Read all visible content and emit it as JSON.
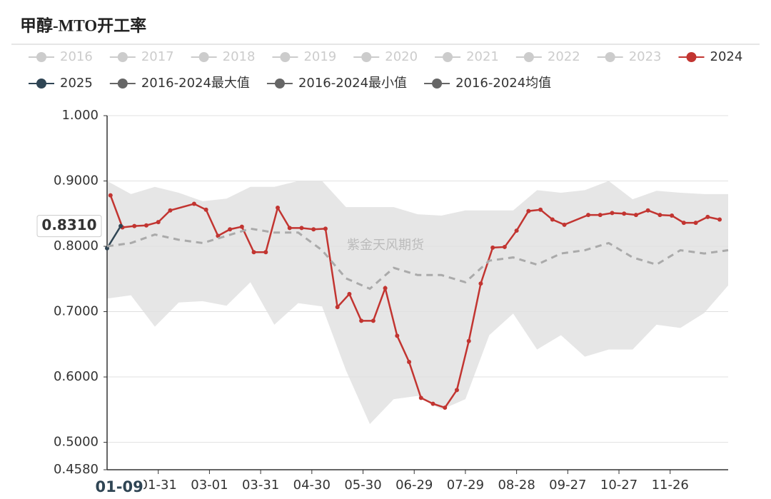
{
  "chart_data": {
    "type": "line",
    "title": "甲醇-MTO开工率",
    "watermark": "紫金天风期货",
    "legend_inactive": {
      "names": [
        "2016",
        "2017",
        "2018",
        "2019",
        "2020",
        "2021",
        "2022",
        "2023"
      ],
      "color": "#cccccc"
    },
    "xlim": [
      0,
      364
    ],
    "xticks": [
      {
        "value": 30,
        "label": "01-31"
      },
      {
        "value": 60,
        "label": "03-01"
      },
      {
        "value": 90,
        "label": "03-31"
      },
      {
        "value": 120,
        "label": "04-30"
      },
      {
        "value": 150,
        "label": "05-30"
      },
      {
        "value": 180,
        "label": "06-29"
      },
      {
        "value": 210,
        "label": "07-29"
      },
      {
        "value": 240,
        "label": "08-28"
      },
      {
        "value": 270,
        "label": "09-27"
      },
      {
        "value": 300,
        "label": "10-27"
      },
      {
        "value": 330,
        "label": "11-26"
      }
    ],
    "ylim": [
      0.458,
      1.0
    ],
    "yticks": [
      {
        "value": 0.458,
        "label": "0.4580"
      },
      {
        "value": 0.5,
        "label": "0.5000"
      },
      {
        "value": 0.6,
        "label": "0.6000"
      },
      {
        "value": 0.7,
        "label": "0.7000"
      },
      {
        "value": 0.8,
        "label": "0.8000"
      },
      {
        "value": 0.9,
        "label": "0.9000"
      },
      {
        "value": 1.0,
        "label": "1.000"
      }
    ],
    "grid": true,
    "pointer": {
      "x": 8,
      "x_label": "01-09",
      "value": 0.831,
      "label": "0.8310"
    },
    "series": [
      {
        "name": "2024",
        "color": "#c23531",
        "role": "line",
        "x": [
          2,
          9,
          16,
          23,
          30,
          37,
          51,
          58,
          65,
          72,
          79,
          86,
          93,
          100,
          107,
          114,
          121,
          128,
          135,
          142,
          149,
          156,
          163,
          170,
          177,
          184,
          191,
          198,
          205,
          212,
          219,
          226,
          233,
          240,
          247,
          254,
          261,
          268,
          282,
          289,
          296,
          303,
          310,
          317,
          324,
          331,
          338,
          345,
          352,
          359
        ],
        "values": [
          0.878,
          0.829,
          0.831,
          0.832,
          0.837,
          0.855,
          0.865,
          0.856,
          0.816,
          0.826,
          0.83,
          0.791,
          0.791,
          0.859,
          0.828,
          0.828,
          0.826,
          0.827,
          0.707,
          0.727,
          0.686,
          0.686,
          0.736,
          0.663,
          0.623,
          0.568,
          0.559,
          0.553,
          0.58,
          0.655,
          0.743,
          0.798,
          0.799,
          0.824,
          0.854,
          0.856,
          0.841,
          0.833,
          0.848,
          0.848,
          0.851,
          0.85,
          0.848,
          0.855,
          0.848,
          0.847,
          0.836,
          0.836,
          0.845,
          0.841
        ]
      },
      {
        "name": "2025",
        "color": "#2f4554",
        "role": "line",
        "x": [
          0,
          8
        ],
        "values": [
          0.797,
          0.831
        ]
      },
      {
        "name": "2016-2024最大值",
        "color": "#666666",
        "role": "band-top",
        "x": [
          0,
          14,
          28,
          42,
          56,
          70,
          84,
          98,
          112,
          126,
          140,
          154,
          168,
          182,
          196,
          210,
          224,
          238,
          252,
          266,
          280,
          294,
          308,
          322,
          336,
          350,
          364
        ],
        "values": [
          0.9,
          0.88,
          0.891,
          0.882,
          0.869,
          0.873,
          0.891,
          0.891,
          0.9,
          0.9,
          0.86,
          0.86,
          0.86,
          0.849,
          0.847,
          0.855,
          0.855,
          0.855,
          0.886,
          0.882,
          0.886,
          0.9,
          0.872,
          0.885,
          0.882,
          0.88,
          0.88
        ]
      },
      {
        "name": "2016-2024最小值",
        "color": "#666666",
        "role": "band-bottom",
        "x": [
          0,
          14,
          28,
          42,
          56,
          70,
          84,
          98,
          112,
          126,
          140,
          154,
          168,
          182,
          196,
          210,
          224,
          238,
          252,
          266,
          280,
          294,
          308,
          322,
          336,
          350,
          364
        ],
        "values": [
          0.72,
          0.725,
          0.677,
          0.714,
          0.716,
          0.709,
          0.745,
          0.68,
          0.713,
          0.708,
          0.61,
          0.528,
          0.566,
          0.571,
          0.55,
          0.566,
          0.664,
          0.697,
          0.642,
          0.664,
          0.631,
          0.642,
          0.642,
          0.68,
          0.675,
          0.698,
          0.74
        ]
      },
      {
        "name": "2016-2024均值",
        "color": "#666666",
        "role": "dashed",
        "x": [
          0,
          14,
          28,
          42,
          56,
          70,
          84,
          98,
          112,
          126,
          140,
          154,
          168,
          182,
          196,
          210,
          224,
          238,
          252,
          266,
          280,
          294,
          308,
          322,
          336,
          350,
          364
        ],
        "values": [
          0.8,
          0.805,
          0.818,
          0.81,
          0.805,
          0.816,
          0.827,
          0.821,
          0.821,
          0.794,
          0.751,
          0.735,
          0.767,
          0.756,
          0.756,
          0.745,
          0.778,
          0.783,
          0.772,
          0.789,
          0.794,
          0.805,
          0.783,
          0.772,
          0.794,
          0.789,
          0.794
        ]
      }
    ]
  }
}
